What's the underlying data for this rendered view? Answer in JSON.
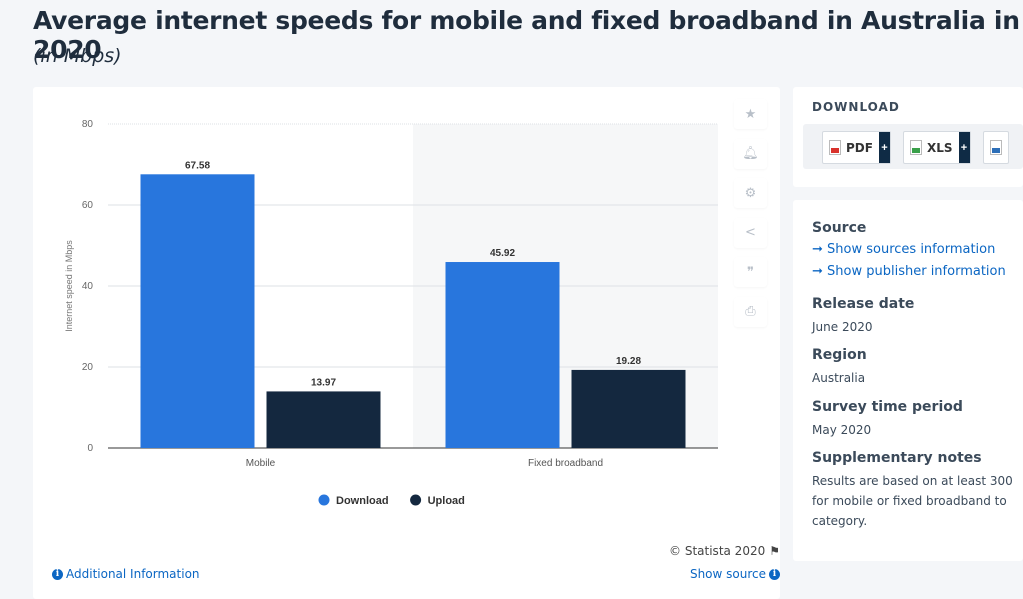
{
  "header": {
    "title": "Average internet speeds for mobile and fixed broadband in Australia in 2020",
    "subtitle": "(in Mbps)"
  },
  "chart_data": {
    "type": "bar",
    "categories": [
      "Mobile",
      "Fixed broadband"
    ],
    "series": [
      {
        "name": "Download",
        "values": [
          67.58,
          45.92
        ],
        "color": "#2876dd"
      },
      {
        "name": "Upload",
        "values": [
          13.97,
          19.28
        ],
        "color": "#14283f"
      }
    ],
    "data_labels": [
      [
        "67.58",
        "45.92"
      ],
      [
        "13.97",
        "19.28"
      ]
    ],
    "ylabel": "Internet speed in Mbps",
    "xlabel": "",
    "ylim": [
      0,
      80
    ],
    "yticks": [
      0,
      20,
      40,
      60,
      80
    ],
    "grid": true,
    "legend_position": "bottom-center"
  },
  "chart_footer": {
    "copyright": "© Statista 2020",
    "additional_info": "Additional Information",
    "show_source": "Show source"
  },
  "tools": [
    "star-icon",
    "bell-icon",
    "gear-icon",
    "share-icon",
    "quote-icon",
    "print-icon"
  ],
  "download": {
    "heading": "DOWNLOAD",
    "buttons": [
      {
        "label": "PDF",
        "plus": "+",
        "color": "#d9322c"
      },
      {
        "label": "XLS",
        "plus": "+",
        "color": "#3aa04a"
      }
    ]
  },
  "details": {
    "source_heading": "Source",
    "show_sources": "Show sources information",
    "show_publisher": "Show publisher information",
    "release_heading": "Release date",
    "release_value": "June 2020",
    "region_heading": "Region",
    "region_value": "Australia",
    "survey_heading": "Survey time period",
    "survey_value": "May 2020",
    "notes_heading": "Supplementary notes",
    "notes_lines": [
      "Results are based on at least 300",
      "for mobile or fixed broadband to",
      "category."
    ]
  }
}
